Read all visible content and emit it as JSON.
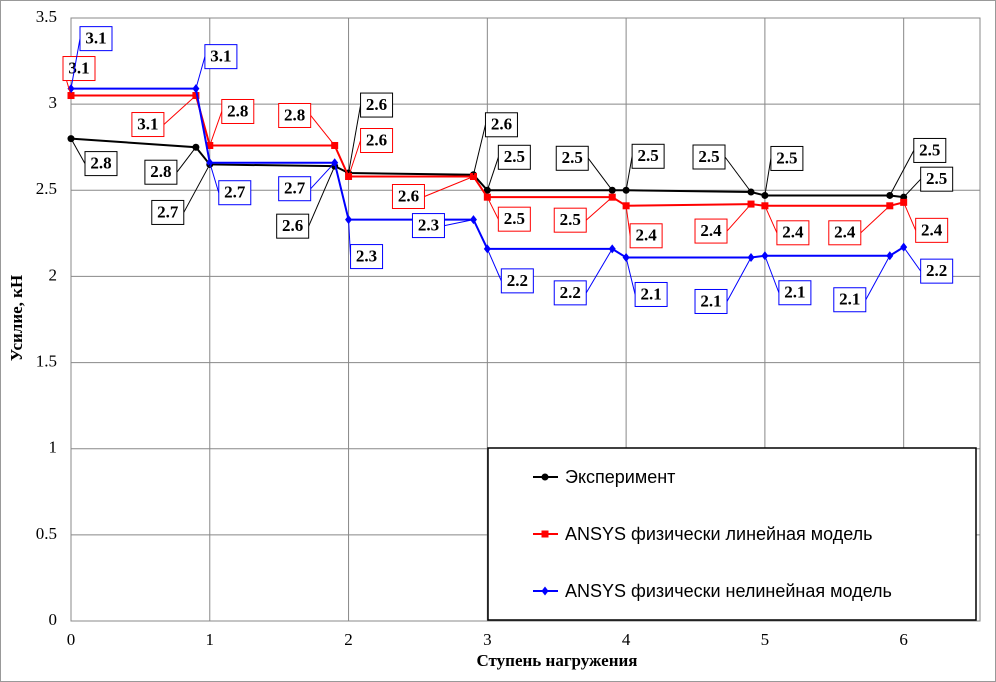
{
  "chart_data": {
    "type": "line",
    "xlabel": "Ступень нагружения",
    "ylabel": "Усилие, кН",
    "x": [
      0,
      0.9,
      1,
      1.9,
      2,
      2.9,
      3,
      3.9,
      4,
      4.9,
      5,
      5.9,
      6
    ],
    "series": [
      {
        "name": "Эксперимент",
        "color": "#000000",
        "marker": "circle",
        "values": [
          2.8,
          2.75,
          2.65,
          2.64,
          2.6,
          2.59,
          2.5,
          2.5,
          2.5,
          2.49,
          2.47,
          2.47,
          2.46
        ],
        "value_labels": [
          "2.8",
          "2.8",
          "2.7",
          "2.6",
          "2.6",
          "2.6",
          "2.5",
          "2.5",
          "2.5",
          "2.5",
          "2.5",
          "2.5",
          "2.5"
        ]
      },
      {
        "name": "ANSYS физически линейная модель",
        "color": "#ff0000",
        "marker": "square",
        "values": [
          3.05,
          3.05,
          2.76,
          2.76,
          2.58,
          2.58,
          2.46,
          2.46,
          2.41,
          2.42,
          2.41,
          2.41,
          2.43
        ],
        "value_labels": [
          "3.1",
          "3.1",
          "2.8",
          "2.8",
          "2.6",
          "2.6",
          "2.5",
          "2.5",
          "2.4",
          "2.4",
          "2.4",
          "2.4",
          "2.4"
        ]
      },
      {
        "name": "ANSYS физически нелинейная модель",
        "color": "#0000ff",
        "marker": "diamond",
        "values": [
          3.09,
          3.09,
          2.66,
          2.66,
          2.33,
          2.33,
          2.16,
          2.16,
          2.11,
          2.11,
          2.12,
          2.12,
          2.17
        ],
        "value_labels": [
          "3.1",
          "3.1",
          "2.7",
          "2.7",
          "2.3",
          "2.3",
          "2.2",
          "2.2",
          "2.1",
          "2.1",
          "2.1",
          "2.1",
          "2.2"
        ]
      }
    ],
    "xlim": [
      0,
      6.55
    ],
    "xticks": [
      0,
      1,
      2,
      3,
      4,
      5,
      6
    ],
    "ylim": [
      0,
      3.5
    ],
    "yticks": [
      0,
      0.5,
      1,
      1.5,
      2,
      2.5,
      3,
      3.5
    ],
    "grid": true,
    "legend": "lower right"
  }
}
